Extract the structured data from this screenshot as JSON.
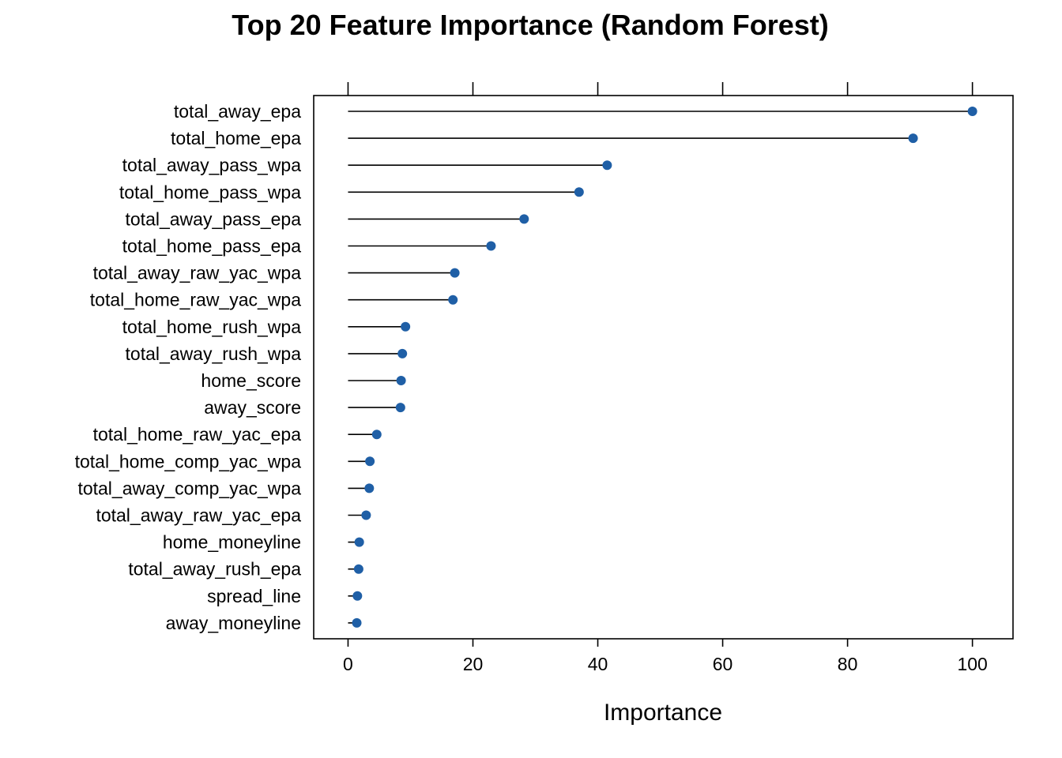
{
  "chart_data": {
    "type": "dot",
    "title": "Top 20 Feature Importance (Random Forest)",
    "xlabel": "Importance",
    "ylabel": "",
    "xlim": [
      -5.5,
      106.5
    ],
    "xticks": [
      0,
      20,
      40,
      60,
      80,
      100
    ],
    "grid": false,
    "categories": [
      "total_away_epa",
      "total_home_epa",
      "total_away_pass_wpa",
      "total_home_pass_wpa",
      "total_away_pass_epa",
      "total_home_pass_epa",
      "total_away_raw_yac_wpa",
      "total_home_raw_yac_wpa",
      "total_home_rush_wpa",
      "total_away_rush_wpa",
      "home_score",
      "away_score",
      "total_home_raw_yac_epa",
      "total_home_comp_yac_wpa",
      "total_away_comp_yac_wpa",
      "total_away_raw_yac_epa",
      "home_moneyline",
      "total_away_rush_epa",
      "spread_line",
      "away_moneyline"
    ],
    "values": [
      100,
      90.5,
      41.5,
      37.0,
      28.2,
      22.9,
      17.1,
      16.8,
      9.2,
      8.7,
      8.5,
      8.4,
      4.6,
      3.5,
      3.4,
      2.9,
      1.8,
      1.7,
      1.5,
      1.4
    ],
    "point_color": "#1f5fa6"
  }
}
